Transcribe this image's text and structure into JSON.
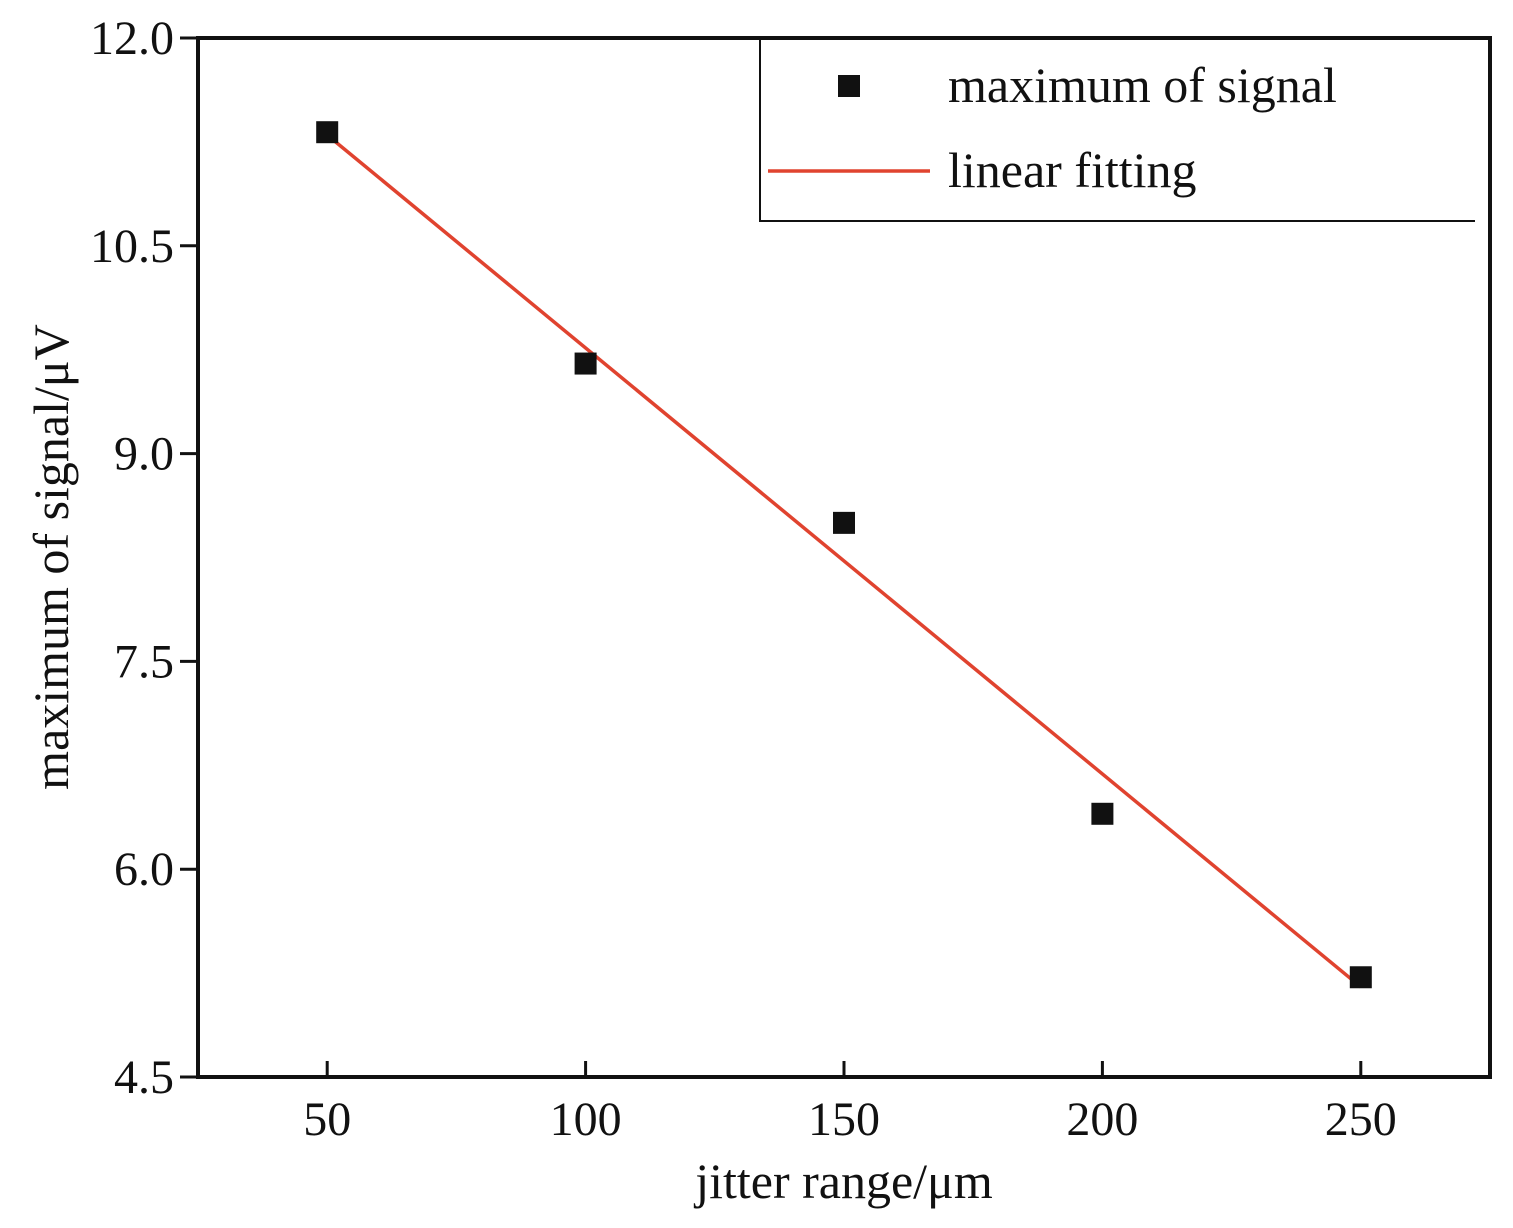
{
  "chart_data": {
    "type": "scatter",
    "xlabel": "jitter range/μm",
    "ylabel": "maximum of signal/μV",
    "xlim": [
      25,
      275
    ],
    "ylim": [
      4.5,
      12.0
    ],
    "xticks": [
      50,
      100,
      150,
      200,
      250
    ],
    "xtick_labels": [
      "50",
      "100",
      "150",
      "200",
      "250"
    ],
    "yticks": [
      4.5,
      6.0,
      7.5,
      9.0,
      10.5,
      12.0
    ],
    "ytick_labels": [
      "4.5",
      "6.0",
      "7.5",
      "9.0",
      "10.5",
      "12.0"
    ],
    "grid": false,
    "legend_position": "top-right",
    "series": [
      {
        "name": "maximum of signal",
        "kind": "scatter",
        "marker": "square",
        "color": "#111111",
        "x": [
          50,
          100,
          150,
          200,
          250
        ],
        "y": [
          11.32,
          9.65,
          8.5,
          6.4,
          5.22
        ]
      },
      {
        "name": "linear fitting",
        "kind": "line",
        "color": "#e0432f",
        "x": [
          50,
          250
        ],
        "y": [
          11.3,
          5.15
        ]
      }
    ]
  }
}
